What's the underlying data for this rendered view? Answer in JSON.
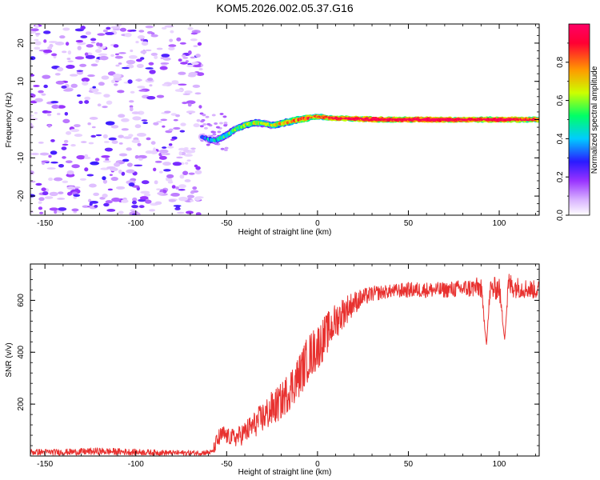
{
  "figure_title": "KOM5.2026.002.05.37.G16",
  "colors": {
    "snr_line": "#e8312f",
    "axis": "#000000",
    "colormap": [
      "#ffffff",
      "#d9b3ff",
      "#9933ff",
      "#2a1aff",
      "#00ccff",
      "#00ff66",
      "#ccff00",
      "#ff9900",
      "#ff0033",
      "#ff0066"
    ]
  },
  "chart_data": [
    {
      "type": "heatmap",
      "title": "",
      "xlabel": "Height of straight line (km)",
      "ylabel": "Frequency (Hz)",
      "xlim": [
        -158,
        122
      ],
      "ylim": [
        -25,
        25
      ],
      "xticks": [
        -150,
        -100,
        -50,
        0,
        50,
        100
      ],
      "xtick_labels": [
        "-150",
        "-100",
        "-50",
        "0",
        "50",
        "100"
      ],
      "yticks": [
        -20,
        -10,
        0,
        10,
        20
      ],
      "ytick_labels": [
        "-20",
        "-10",
        "0",
        "10",
        "20"
      ],
      "noise_region_x": [
        -158,
        -64
      ],
      "ridge": {
        "x": [
          -64,
          -58,
          -54,
          -50,
          -45,
          -40,
          -35,
          -30,
          -25,
          -20,
          -15,
          -10,
          -5,
          0,
          5,
          10,
          20,
          30,
          40,
          50,
          60,
          70,
          80,
          90,
          100,
          110,
          120
        ],
        "freq": [
          -4.5,
          -5.5,
          -5,
          -4,
          -2.5,
          -1.5,
          -0.8,
          -1,
          -1.5,
          -1,
          -0.5,
          0,
          0.5,
          0.8,
          0.5,
          0.3,
          0.2,
          0.1,
          0,
          0,
          0,
          0,
          0,
          0,
          0,
          0,
          0
        ],
        "amplitude": [
          0.25,
          0.35,
          0.4,
          0.45,
          0.5,
          0.5,
          0.55,
          0.5,
          0.55,
          0.6,
          0.65,
          0.7,
          0.75,
          0.75,
          0.8,
          0.85,
          0.85,
          0.9,
          0.9,
          0.9,
          0.95,
          0.9,
          0.9,
          0.85,
          0.9,
          0.85,
          0.8
        ]
      },
      "colorbar": {
        "label": "Normalized spectral amplitude",
        "range": [
          0,
          1
        ],
        "ticks": [
          0.0,
          0.2,
          0.4,
          0.6,
          0.8
        ],
        "tick_labels": [
          "0.0",
          "0.2",
          "0.4",
          "0.6",
          "0.8"
        ]
      }
    },
    {
      "type": "line",
      "title": "",
      "xlabel": "Height of straight line (km)",
      "ylabel": "SNR (v/v)",
      "xlim": [
        -158,
        122
      ],
      "ylim": [
        0,
        740
      ],
      "xticks": [
        -150,
        -100,
        -50,
        0,
        50,
        100
      ],
      "xtick_labels": [
        "-150",
        "-100",
        "-50",
        "0",
        "50",
        "100"
      ],
      "yticks": [
        200,
        400,
        600
      ],
      "ytick_labels": [
        "200",
        "400",
        "600"
      ],
      "series": [
        {
          "name": "SNR",
          "x": [
            -158,
            -140,
            -120,
            -100,
            -80,
            -65,
            -58,
            -55,
            -52,
            -50,
            -45,
            -40,
            -35,
            -30,
            -25,
            -20,
            -15,
            -10,
            -5,
            0,
            5,
            10,
            15,
            20,
            25,
            30,
            40,
            50,
            60,
            70,
            80,
            90,
            93,
            95,
            100,
            103,
            105,
            110,
            120
          ],
          "y": [
            15,
            15,
            18,
            15,
            12,
            12,
            15,
            60,
            85,
            75,
            70,
            90,
            120,
            150,
            180,
            210,
            260,
            310,
            380,
            420,
            470,
            520,
            560,
            590,
            610,
            625,
            635,
            640,
            640,
            640,
            645,
            650,
            430,
            640,
            650,
            450,
            660,
            650,
            640
          ],
          "noise": [
            12,
            12,
            14,
            12,
            10,
            10,
            10,
            40,
            35,
            30,
            35,
            45,
            50,
            60,
            70,
            70,
            80,
            85,
            90,
            90,
            80,
            70,
            60,
            45,
            35,
            30,
            25,
            30,
            30,
            30,
            35,
            40,
            0,
            45,
            45,
            0,
            50,
            40,
            35
          ]
        }
      ]
    }
  ]
}
